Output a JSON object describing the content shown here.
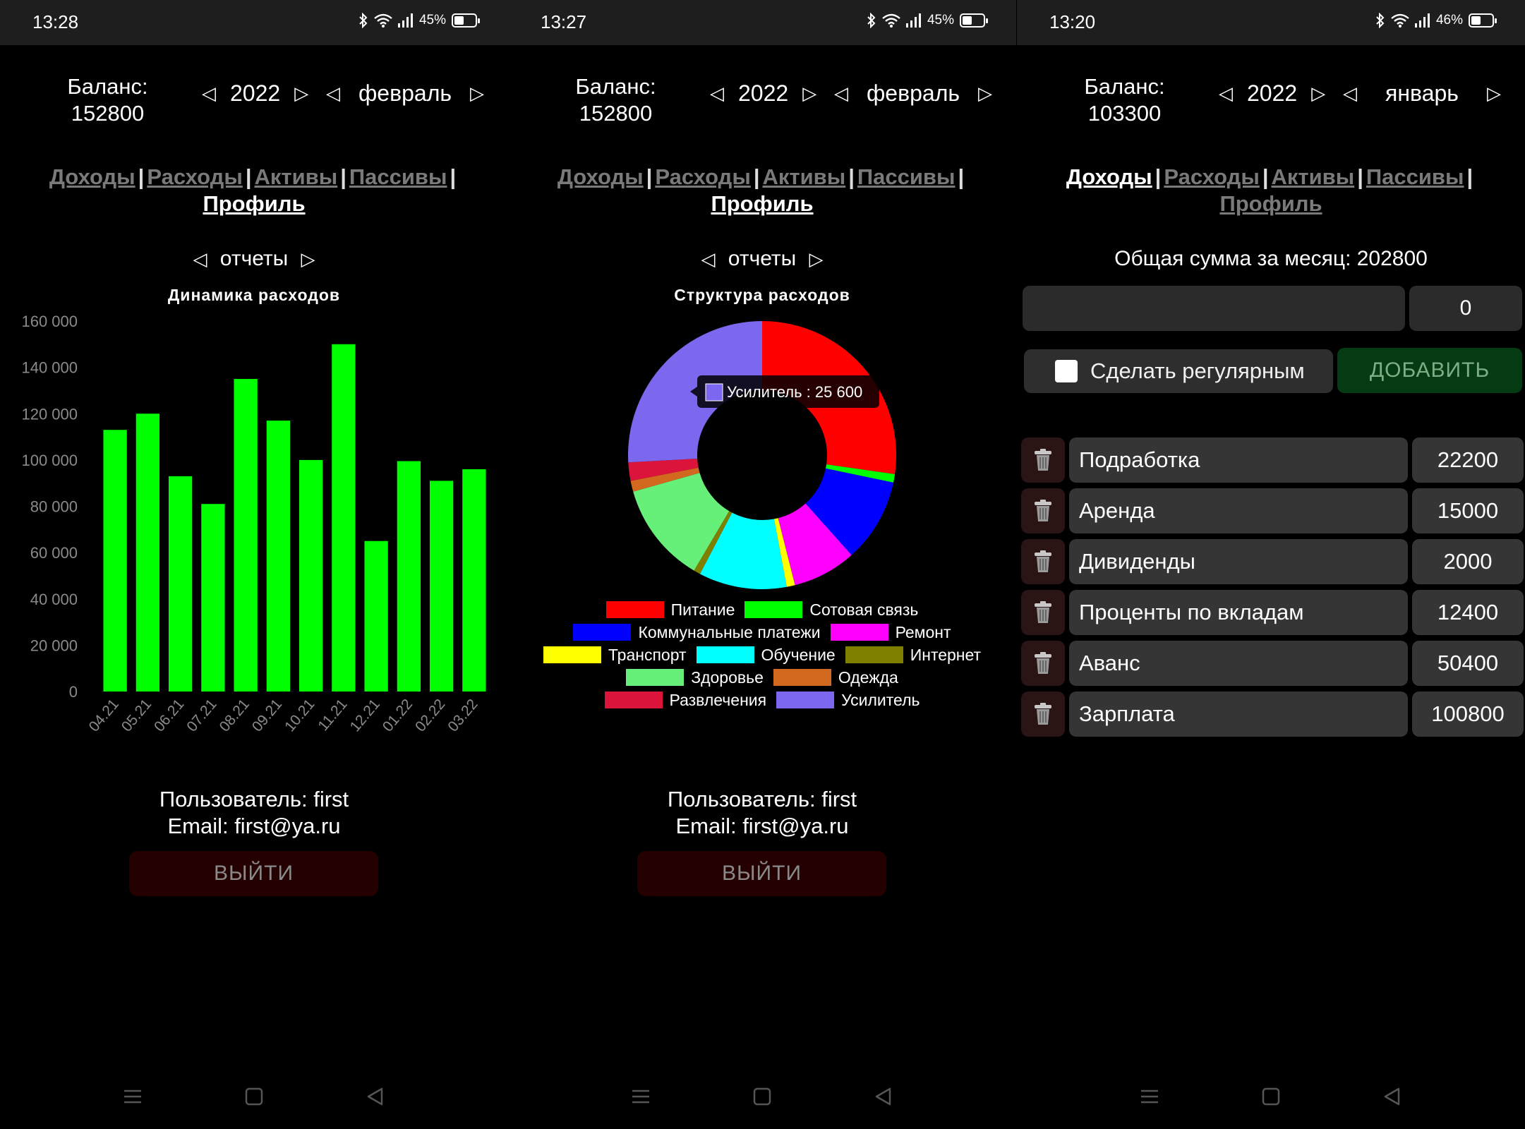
{
  "screens": [
    {
      "status": {
        "time": "13:28",
        "battery": "45%",
        "battery_level": 0.45
      },
      "balance_label": "Баланс:",
      "balance_value": "152800",
      "year": "2022",
      "month": "февраль",
      "nav": {
        "income": "Доходы",
        "expenses": "Расходы",
        "assets": "Активы",
        "liabilities": "Пассивы",
        "profile": "Профиль",
        "separator": "|"
      },
      "reports_label": "отчеты",
      "user_line": "Пользователь: first",
      "email_line": "Email: first@ya.ru",
      "logout_label": "ВЫЙТИ"
    },
    {
      "status": {
        "time": "13:27",
        "battery": "45%",
        "battery_level": 0.45
      },
      "balance_label": "Баланс:",
      "balance_value": "152800",
      "year": "2022",
      "month": "февраль",
      "nav": {
        "income": "Доходы",
        "expenses": "Расходы",
        "assets": "Активы",
        "liabilities": "Пассивы",
        "profile": "Профиль",
        "separator": "|"
      },
      "reports_label": "отчеты",
      "user_line": "Пользователь: first",
      "email_line": "Email: first@ya.ru",
      "logout_label": "ВЫЙТИ",
      "tooltip": "Усилитель : 25 600"
    },
    {
      "status": {
        "time": "13:20",
        "battery": "46%",
        "battery_level": 0.46
      },
      "balance_label": "Баланс:",
      "balance_value": "103300",
      "year": "2022",
      "month": "январь",
      "nav": {
        "income": "Доходы",
        "expenses": "Расходы",
        "assets": "Активы",
        "liabilities": "Пассивы",
        "profile": "Профиль",
        "separator": "|"
      },
      "total_line": "Общая сумма за месяц: 202800",
      "amount_input_value": "0",
      "regular_label": "Сделать регулярным",
      "add_label": "ДОБАВИТЬ",
      "items": [
        {
          "name": "Подработка",
          "value": "22200"
        },
        {
          "name": "Аренда",
          "value": "15000"
        },
        {
          "name": "Дивиденды",
          "value": "2000"
        },
        {
          "name": "Проценты по вкладам",
          "value": "12400"
        },
        {
          "name": "Аванс",
          "value": "50400"
        },
        {
          "name": "Зарплата",
          "value": "100800"
        }
      ]
    }
  ],
  "chart_data": [
    {
      "type": "bar",
      "title": "Динамика расходов",
      "categories": [
        "04.21",
        "05.21",
        "06.21",
        "07.21",
        "08.21",
        "09.21",
        "10.21",
        "11.21",
        "12.21",
        "01.22",
        "02.22",
        "03.22"
      ],
      "values": [
        113000,
        120000,
        93000,
        81000,
        135000,
        117000,
        100000,
        150000,
        65000,
        99500,
        91000,
        96000
      ],
      "ylim": [
        0,
        160000
      ],
      "yticks": [
        "0",
        "20 000",
        "40 000",
        "60 000",
        "80 000",
        "100 000",
        "120 000",
        "140 000",
        "160 000"
      ],
      "color": "#00ff00"
    },
    {
      "type": "pie",
      "title": "Структура расходов",
      "labels": [
        "Питание",
        "Сотовая связь",
        "Коммунальные платежи",
        "Ремонт",
        "Транспорт",
        "Обучение",
        "Интернет",
        "Здоровье",
        "Одежда",
        "Развлечения",
        "Усилитель"
      ],
      "values": [
        27000,
        1000,
        10000,
        7600,
        1000,
        10500,
        800,
        12000,
        1300,
        2200,
        25600
      ],
      "colors": [
        "#ff0000",
        "#00ff00",
        "#0000ff",
        "#ff00ff",
        "#ffff00",
        "#00ffff",
        "#808000",
        "#66f07a",
        "#d2691e",
        "#dc143c",
        "#7b68ee"
      ]
    }
  ]
}
